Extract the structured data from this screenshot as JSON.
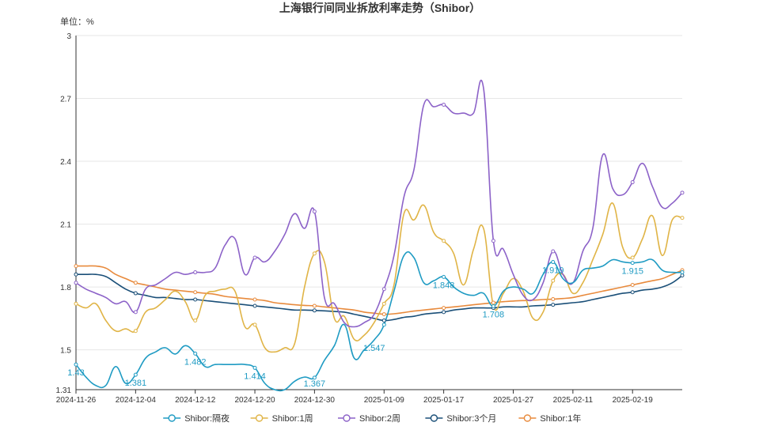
{
  "chart_data": {
    "type": "line",
    "title": "上海银行间同业拆放利率走势（Shibor）",
    "unit_label": "单位：%",
    "ylim": [
      1.31,
      3.0
    ],
    "y_ticks": [
      "3",
      "2.7",
      "2.4",
      "2.1",
      "1.8",
      "1.5",
      "1.31"
    ],
    "grid": true,
    "legend_position": "bottom",
    "x_tick_labels": [
      "2024-11-26",
      "2024-12-04",
      "2024-12-12",
      "2024-12-20",
      "2024-12-30",
      "2025-01-09",
      "2025-01-17",
      "2025-01-27",
      "2025-02-11",
      "2025-02-19"
    ],
    "categories": [
      "2024-11-26",
      "2024-11-27",
      "2024-11-28",
      "2024-11-29",
      "2024-12-02",
      "2024-12-03",
      "2024-12-04",
      "2024-12-05",
      "2024-12-06",
      "2024-12-09",
      "2024-12-10",
      "2024-12-11",
      "2024-12-12",
      "2024-12-13",
      "2024-12-16",
      "2024-12-17",
      "2024-12-18",
      "2024-12-19",
      "2024-12-20",
      "2024-12-23",
      "2024-12-24",
      "2024-12-25",
      "2024-12-26",
      "2024-12-27",
      "2024-12-30",
      "2024-12-31",
      "2025-01-02",
      "2025-01-03",
      "2025-01-06",
      "2025-01-07",
      "2025-01-08",
      "2025-01-09",
      "2025-01-10",
      "2025-01-13",
      "2025-01-14",
      "2025-01-15",
      "2025-01-16",
      "2025-01-17",
      "2025-01-20",
      "2025-01-21",
      "2025-01-22",
      "2025-01-23",
      "2025-01-24",
      "2025-01-26",
      "2025-01-27",
      "2025-02-05",
      "2025-02-06",
      "2025-02-07",
      "2025-02-08",
      "2025-02-10",
      "2025-02-11",
      "2025-02-12",
      "2025-02-13",
      "2025-02-14",
      "2025-02-17",
      "2025-02-18",
      "2025-02-19",
      "2025-02-20",
      "2025-02-21",
      "2025-02-24",
      "2025-02-25",
      "2025-02-26"
    ],
    "series": [
      {
        "name": "Shibor:隔夜",
        "color": "#1f9bc3",
        "values": [
          1.43,
          1.37,
          1.33,
          1.33,
          1.42,
          1.34,
          1.381,
          1.46,
          1.49,
          1.51,
          1.48,
          1.52,
          1.482,
          1.42,
          1.43,
          1.43,
          1.43,
          1.43,
          1.414,
          1.34,
          1.31,
          1.31,
          1.35,
          1.37,
          1.367,
          1.45,
          1.52,
          1.62,
          1.46,
          1.5,
          1.547,
          1.62,
          1.78,
          1.95,
          1.94,
          1.82,
          1.83,
          1.848,
          1.8,
          1.77,
          1.76,
          1.77,
          1.708,
          1.78,
          1.8,
          1.79,
          1.77,
          1.86,
          1.919,
          1.84,
          1.82,
          1.88,
          1.89,
          1.9,
          1.93,
          1.92,
          1.915,
          1.92,
          1.93,
          1.88,
          1.87,
          1.87
        ],
        "labels": [
          {
            "i": 0,
            "text": "1.43"
          },
          {
            "i": 6,
            "text": "1.381"
          },
          {
            "i": 12,
            "text": "1.482"
          },
          {
            "i": 18,
            "text": "1.414"
          },
          {
            "i": 24,
            "text": "1.367"
          },
          {
            "i": 30,
            "text": "1.547"
          },
          {
            "i": 37,
            "text": "1.848"
          },
          {
            "i": 42,
            "text": "1.708"
          },
          {
            "i": 48,
            "text": "1.919"
          },
          {
            "i": 56,
            "text": "1.915"
          }
        ]
      },
      {
        "name": "Shibor:1周",
        "color": "#e0b446",
        "values": [
          1.72,
          1.7,
          1.72,
          1.64,
          1.59,
          1.6,
          1.59,
          1.68,
          1.7,
          1.74,
          1.78,
          1.73,
          1.64,
          1.76,
          1.78,
          1.79,
          1.78,
          1.61,
          1.62,
          1.51,
          1.49,
          1.51,
          1.53,
          1.8,
          1.96,
          1.92,
          1.65,
          1.66,
          1.55,
          1.57,
          1.63,
          1.72,
          1.81,
          2.15,
          2.12,
          2.19,
          2.06,
          2.02,
          1.96,
          1.81,
          1.98,
          2.08,
          1.71,
          1.77,
          1.84,
          1.78,
          1.65,
          1.68,
          1.83,
          1.86,
          1.77,
          1.82,
          1.93,
          2.05,
          2.2,
          1.99,
          1.94,
          2.03,
          2.14,
          1.95,
          2.12,
          2.13
        ]
      },
      {
        "name": "Shibor:2周",
        "color": "#8c62c8",
        "values": [
          1.82,
          1.79,
          1.77,
          1.75,
          1.72,
          1.73,
          1.68,
          1.79,
          1.81,
          1.84,
          1.87,
          1.86,
          1.87,
          1.87,
          1.89,
          2.0,
          2.03,
          1.86,
          1.94,
          1.92,
          1.97,
          2.05,
          2.15,
          2.08,
          2.16,
          1.75,
          1.72,
          1.63,
          1.61,
          1.63,
          1.67,
          1.79,
          1.95,
          2.23,
          2.36,
          2.67,
          2.66,
          2.67,
          2.63,
          2.63,
          2.63,
          2.75,
          2.02,
          1.98,
          1.86,
          1.76,
          1.74,
          1.82,
          1.97,
          1.86,
          1.82,
          1.97,
          2.08,
          2.43,
          2.27,
          2.24,
          2.3,
          2.39,
          2.28,
          2.18,
          2.2,
          2.25
        ]
      },
      {
        "name": "Shibor:3个月",
        "color": "#1a4f78",
        "values": [
          1.86,
          1.86,
          1.86,
          1.85,
          1.82,
          1.79,
          1.77,
          1.76,
          1.75,
          1.75,
          1.745,
          1.74,
          1.74,
          1.735,
          1.73,
          1.725,
          1.72,
          1.715,
          1.71,
          1.705,
          1.7,
          1.695,
          1.69,
          1.69,
          1.688,
          1.686,
          1.683,
          1.68,
          1.67,
          1.66,
          1.65,
          1.64,
          1.645,
          1.655,
          1.66,
          1.67,
          1.675,
          1.68,
          1.69,
          1.695,
          1.7,
          1.7,
          1.7,
          1.705,
          1.705,
          1.705,
          1.71,
          1.712,
          1.715,
          1.72,
          1.725,
          1.73,
          1.74,
          1.75,
          1.76,
          1.77,
          1.775,
          1.785,
          1.79,
          1.8,
          1.82,
          1.855
        ]
      },
      {
        "name": "Shibor:1年",
        "color": "#e88a3c",
        "values": [
          1.9,
          1.9,
          1.9,
          1.89,
          1.86,
          1.84,
          1.82,
          1.81,
          1.8,
          1.79,
          1.785,
          1.78,
          1.775,
          1.77,
          1.765,
          1.755,
          1.75,
          1.745,
          1.74,
          1.735,
          1.725,
          1.72,
          1.715,
          1.712,
          1.71,
          1.705,
          1.7,
          1.695,
          1.69,
          1.68,
          1.675,
          1.67,
          1.672,
          1.678,
          1.685,
          1.69,
          1.695,
          1.7,
          1.705,
          1.71,
          1.715,
          1.72,
          1.725,
          1.73,
          1.733,
          1.735,
          1.737,
          1.74,
          1.742,
          1.745,
          1.75,
          1.76,
          1.77,
          1.78,
          1.79,
          1.8,
          1.81,
          1.82,
          1.83,
          1.84,
          1.86,
          1.88
        ]
      }
    ]
  }
}
